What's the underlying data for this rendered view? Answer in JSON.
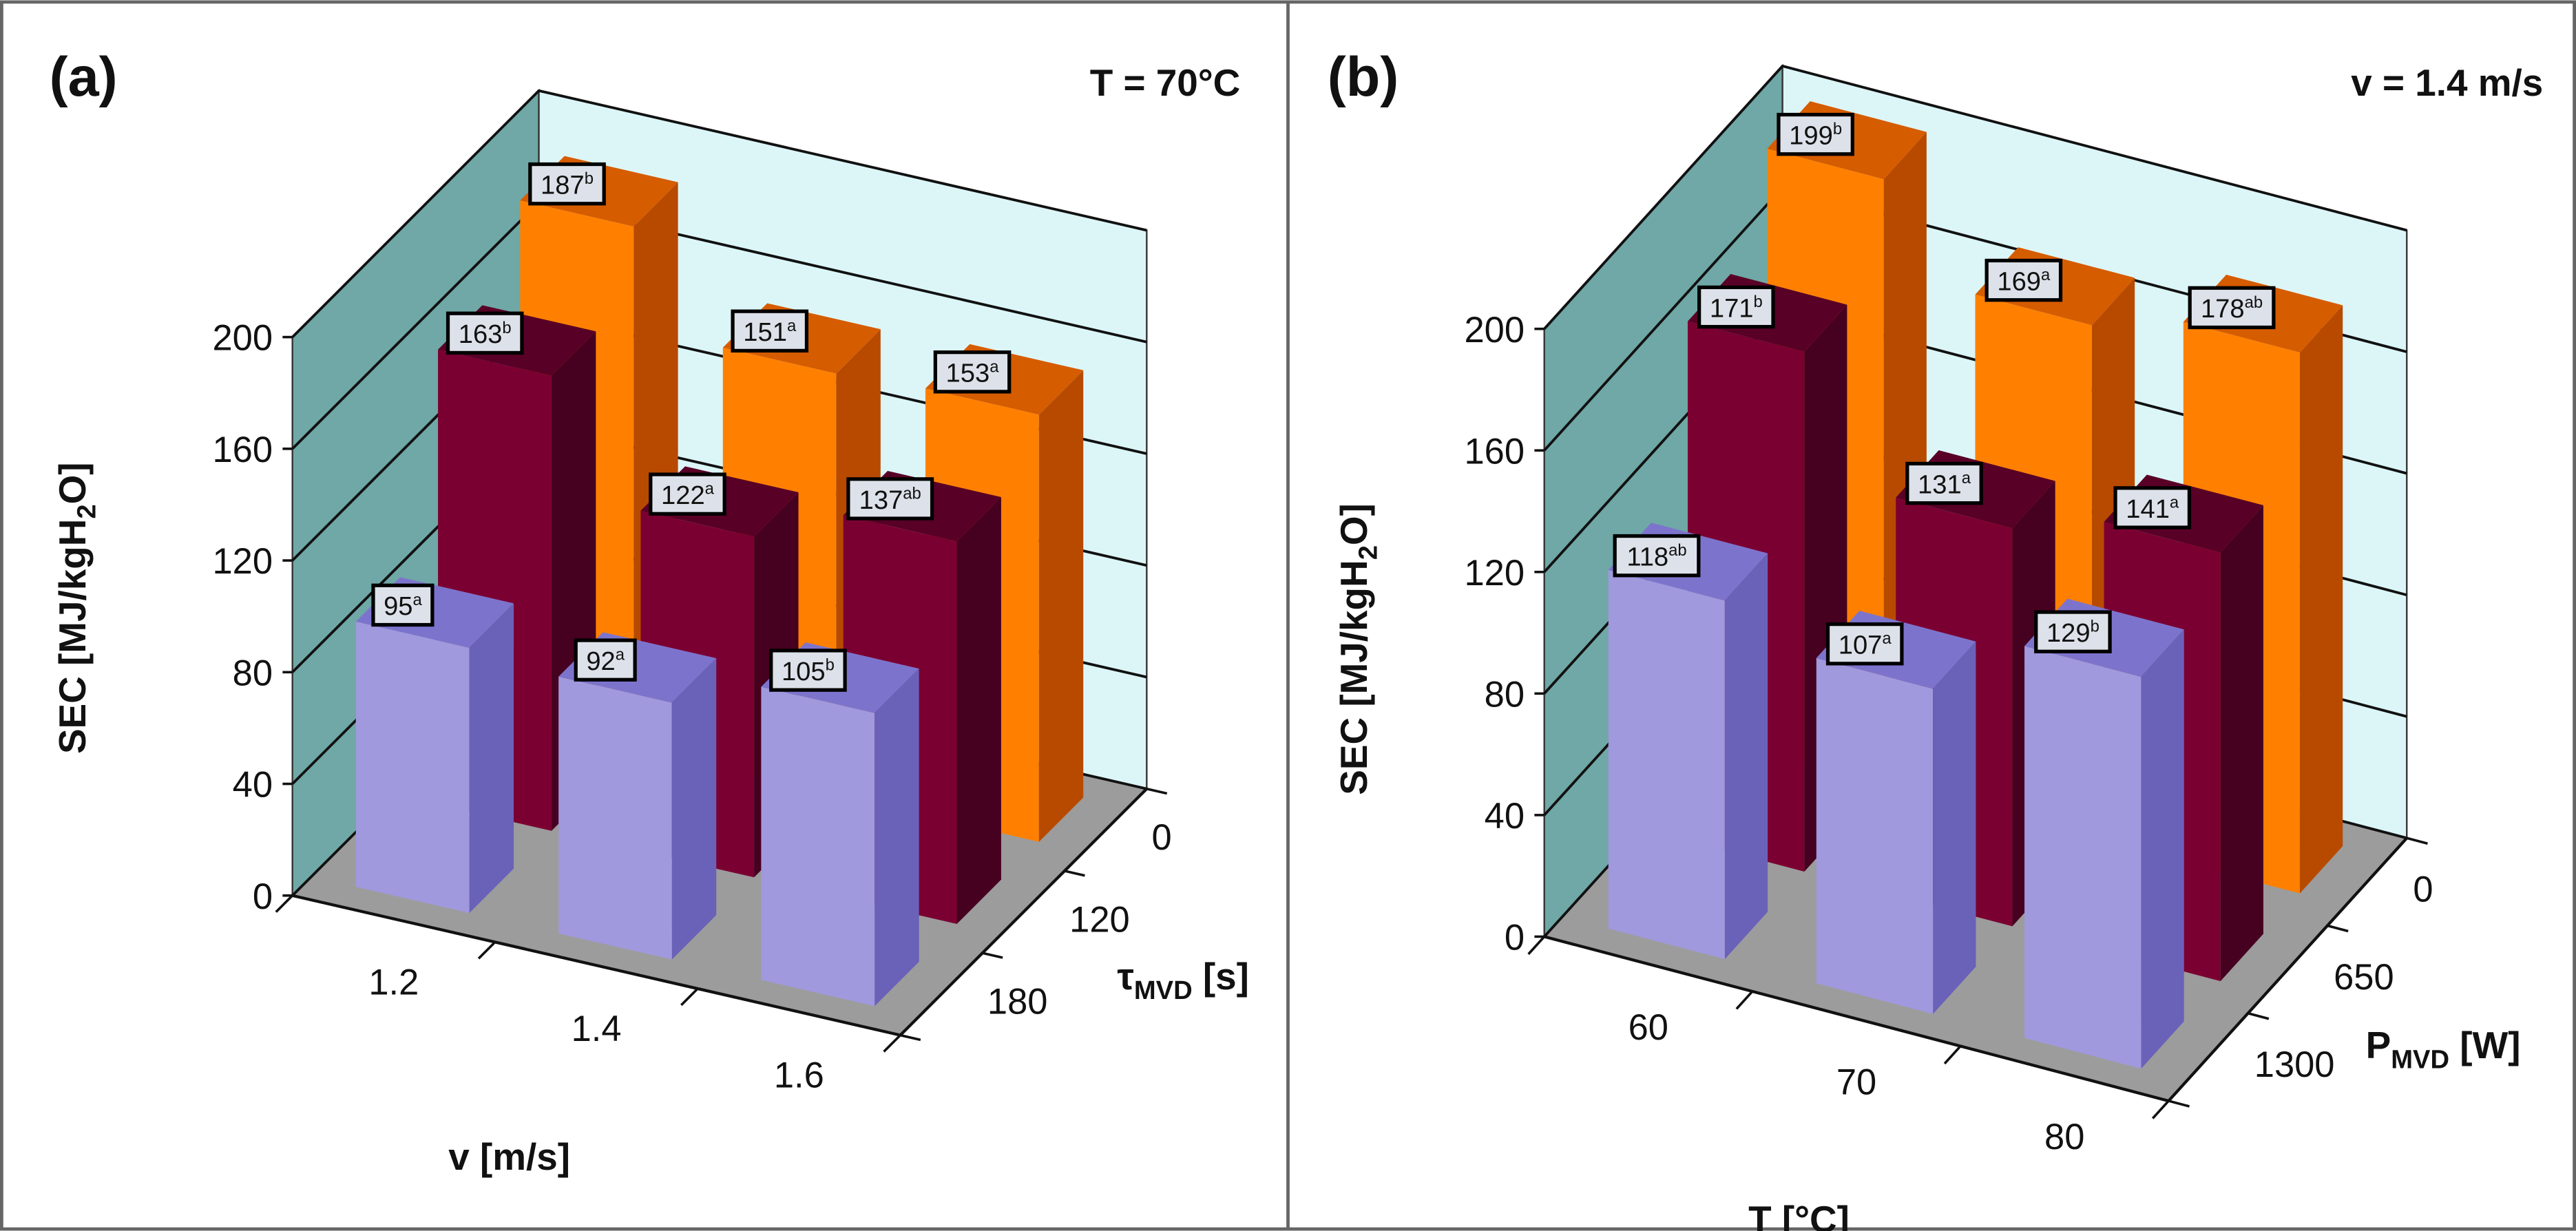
{
  "chart_data": [
    {
      "type": "bar",
      "subtype": "3d-grouped-bar",
      "panel_label": "(a)",
      "condition": "T = 70°C",
      "ylabel": {
        "main": "SEC [MJ/kgH",
        "sub": "2",
        "tail": "O]"
      },
      "xlabel": "v [m/s]",
      "zlabel": {
        "main": "τ",
        "sub": "MVD",
        "tail": " [s]"
      },
      "categories": [
        "1.2",
        "1.4",
        "1.6"
      ],
      "yticks": [
        "0",
        "40",
        "80",
        "120",
        "160",
        "200"
      ],
      "ylim": [
        0,
        200
      ],
      "series": [
        {
          "name": "0",
          "color": "#ff8000",
          "values": [
            187,
            151,
            153
          ],
          "letters": [
            "b",
            "a",
            "a"
          ]
        },
        {
          "name": "120",
          "color": "#7b0032",
          "values": [
            163,
            122,
            137
          ],
          "letters": [
            "b",
            "a",
            "ab"
          ]
        },
        {
          "name": "180",
          "color": "#a099dd",
          "values": [
            95,
            92,
            105
          ],
          "letters": [
            "a",
            "a",
            "b"
          ]
        }
      ]
    },
    {
      "type": "bar",
      "subtype": "3d-grouped-bar",
      "panel_label": "(b)",
      "condition": "v = 1.4 m/s",
      "ylabel": {
        "main": "SEC [MJ/kgH",
        "sub": "2",
        "tail": "O]"
      },
      "xlabel": "T [°C]",
      "zlabel": {
        "main": "P",
        "sub": "MVD",
        "tail": " [W]"
      },
      "categories": [
        "60",
        "70",
        "80"
      ],
      "yticks": [
        "0",
        "40",
        "80",
        "120",
        "160",
        "200"
      ],
      "ylim": [
        0,
        200
      ],
      "series": [
        {
          "name": "0",
          "color": "#ff8000",
          "values": [
            199,
            169,
            178
          ],
          "letters": [
            "b",
            "a",
            "ab"
          ]
        },
        {
          "name": "650",
          "color": "#7b0032",
          "values": [
            171,
            131,
            141
          ],
          "letters": [
            "b",
            "a",
            "a"
          ]
        },
        {
          "name": "1300",
          "color": "#a099dd",
          "values": [
            118,
            107,
            129
          ],
          "letters": [
            "ab",
            "a",
            "b"
          ]
        }
      ]
    }
  ]
}
